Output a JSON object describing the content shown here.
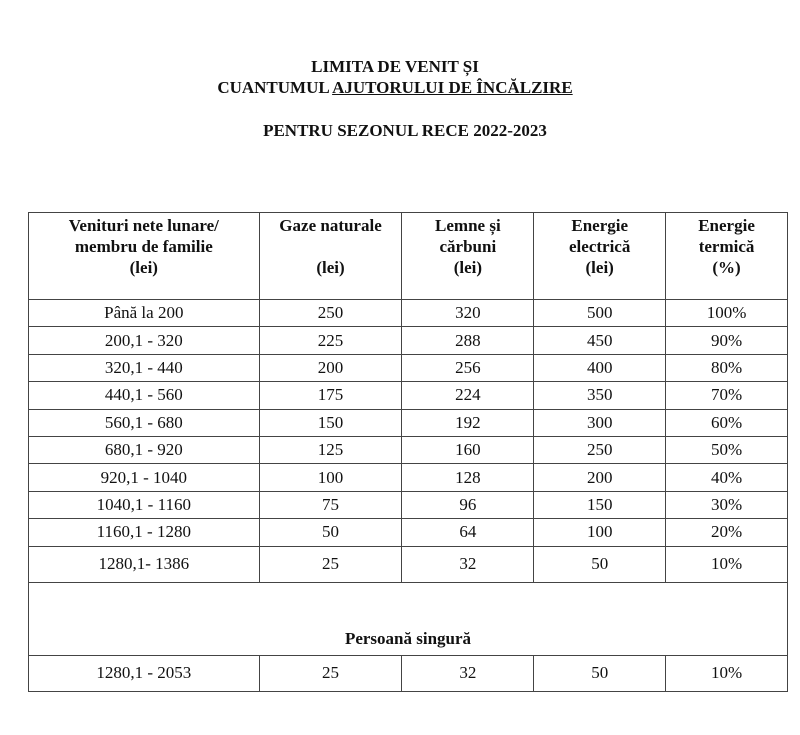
{
  "title": {
    "line1": "LIMITA DE VENIT ȘI",
    "line2_prefix": "CUANTUMUL ",
    "line2_underlined": "AJUTORULUI DE ÎNCĂLZIRE",
    "line3": "PENTRU SEZONUL RECE  2022-2023"
  },
  "table": {
    "headers": [
      [
        "Venituri nete lunare/",
        "membru  de familie",
        "(lei)"
      ],
      [
        "Gaze naturale",
        "",
        "(lei)"
      ],
      [
        "Lemne și",
        "cărbuni",
        "(lei)"
      ],
      [
        "Energie",
        "electrică",
        "(lei)"
      ],
      [
        "Energie",
        "termică",
        "(%)"
      ]
    ],
    "rows": [
      [
        "Până  la 200",
        "250",
        "320",
        "500",
        "100%"
      ],
      [
        "200,1 - 320",
        "225",
        "288",
        "450",
        "90%"
      ],
      [
        "320,1 - 440",
        "200",
        "256",
        "400",
        "80%"
      ],
      [
        "440,1 - 560",
        "175",
        "224",
        "350",
        "70%"
      ],
      [
        "560,1 - 680",
        "150",
        "192",
        "300",
        "60%"
      ],
      [
        "680,1 - 920",
        "125",
        "160",
        "250",
        "50%"
      ],
      [
        "920,1 - 1040",
        "100",
        "128",
        "200",
        "40%"
      ],
      [
        "1040,1 - 1160",
        "75",
        "96",
        "150",
        "30%"
      ],
      [
        "1160,1 - 1280",
        "50",
        "64",
        "100",
        "20%"
      ],
      [
        "1280,1- 1386",
        "25",
        "32",
        "50",
        "10%"
      ]
    ],
    "section_label": "Persoană singură",
    "single_rows": [
      [
        "1280,1 - 2053",
        "25",
        "32",
        "50",
        "10%"
      ]
    ]
  }
}
